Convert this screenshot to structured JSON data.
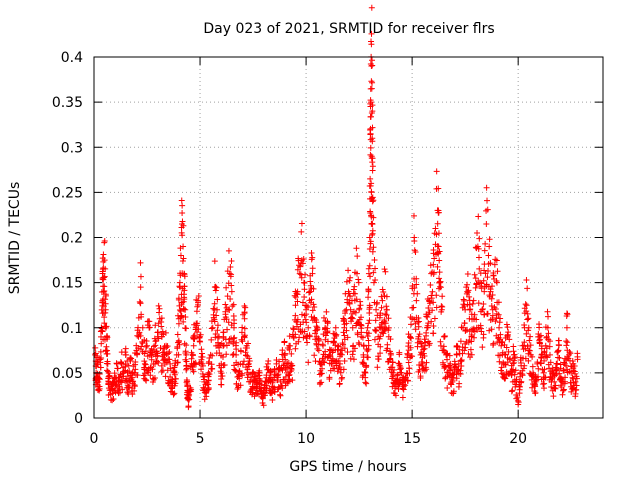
{
  "chart_data": {
    "type": "scatter",
    "title": "Day 023 of 2021, SRMTID for receiver flrs",
    "xlabel": "GPS time / hours",
    "ylabel": "SRMTID / TECUs",
    "xlim": [
      0,
      24
    ],
    "ylim": [
      0,
      0.4
    ],
    "xticks": [
      0,
      5,
      10,
      15,
      20
    ],
    "xtick_labels": [
      "0",
      "5",
      "10",
      "15",
      "20"
    ],
    "yticks": [
      0,
      0.05,
      0.1,
      0.15,
      0.2,
      0.25,
      0.3,
      0.35,
      0.4
    ],
    "ytick_labels": [
      "0",
      "0.05",
      "0.1",
      "0.15",
      "0.2",
      "0.25",
      "0.3",
      "0.35",
      "0.4"
    ],
    "grid": true,
    "marker": "+",
    "color": "#ff0000",
    "x_range_of_data": [
      0,
      22.8
    ],
    "series": [
      {
        "name": "SRMTID",
        "points": [
          [
            0.05,
            0.07
          ],
          [
            0.1,
            0.05
          ],
          [
            0.15,
            0.06
          ],
          [
            0.2,
            0.045
          ],
          [
            0.3,
            0.065
          ],
          [
            0.35,
            0.1
          ],
          [
            0.4,
            0.13
          ],
          [
            0.42,
            0.165
          ],
          [
            0.45,
            0.14
          ],
          [
            0.5,
            0.175
          ],
          [
            0.55,
            0.12
          ],
          [
            0.6,
            0.09
          ],
          [
            0.65,
            0.06
          ],
          [
            0.7,
            0.04
          ],
          [
            0.8,
            0.035
          ],
          [
            0.9,
            0.03
          ],
          [
            1.0,
            0.045
          ],
          [
            1.1,
            0.055
          ],
          [
            1.2,
            0.035
          ],
          [
            1.3,
            0.06
          ],
          [
            1.4,
            0.05
          ],
          [
            1.5,
            0.07
          ],
          [
            1.6,
            0.04
          ],
          [
            1.7,
            0.065
          ],
          [
            1.8,
            0.045
          ],
          [
            1.9,
            0.05
          ],
          [
            2.0,
            0.075
          ],
          [
            2.1,
            0.09
          ],
          [
            2.2,
            0.145
          ],
          [
            2.3,
            0.1
          ],
          [
            2.4,
            0.06
          ],
          [
            2.5,
            0.08
          ],
          [
            2.6,
            0.1
          ],
          [
            2.7,
            0.07
          ],
          [
            2.8,
            0.06
          ],
          [
            2.9,
            0.085
          ],
          [
            3.0,
            0.09
          ],
          [
            3.1,
            0.11
          ],
          [
            3.2,
            0.09
          ],
          [
            3.3,
            0.07
          ],
          [
            3.4,
            0.08
          ],
          [
            3.5,
            0.065
          ],
          [
            3.6,
            0.055
          ],
          [
            3.7,
            0.04
          ],
          [
            3.8,
            0.05
          ],
          [
            3.9,
            0.07
          ],
          [
            4.0,
            0.11
          ],
          [
            4.05,
            0.15
          ],
          [
            4.1,
            0.18
          ],
          [
            4.15,
            0.215
          ],
          [
            4.2,
            0.19
          ],
          [
            4.25,
            0.16
          ],
          [
            4.3,
            0.12
          ],
          [
            4.35,
            0.07
          ],
          [
            4.4,
            0.035
          ],
          [
            4.45,
            0.02
          ],
          [
            4.5,
            0.03
          ],
          [
            4.6,
            0.06
          ],
          [
            4.7,
            0.08
          ],
          [
            4.8,
            0.1
          ],
          [
            4.9,
            0.13
          ],
          [
            5.0,
            0.09
          ],
          [
            5.1,
            0.06
          ],
          [
            5.2,
            0.04
          ],
          [
            5.3,
            0.03
          ],
          [
            5.4,
            0.05
          ],
          [
            5.5,
            0.07
          ],
          [
            5.6,
            0.1
          ],
          [
            5.7,
            0.145
          ],
          [
            5.8,
            0.12
          ],
          [
            5.9,
            0.08
          ],
          [
            6.0,
            0.06
          ],
          [
            6.1,
            0.09
          ],
          [
            6.2,
            0.115
          ],
          [
            6.3,
            0.135
          ],
          [
            6.4,
            0.16
          ],
          [
            6.5,
            0.14
          ],
          [
            6.6,
            0.1
          ],
          [
            6.7,
            0.07
          ],
          [
            6.8,
            0.05
          ],
          [
            6.9,
            0.06
          ],
          [
            7.0,
            0.085
          ],
          [
            7.1,
            0.11
          ],
          [
            7.2,
            0.08
          ],
          [
            7.3,
            0.06
          ],
          [
            7.4,
            0.045
          ],
          [
            7.5,
            0.05
          ],
          [
            7.6,
            0.04
          ],
          [
            7.7,
            0.035
          ],
          [
            7.8,
            0.05
          ],
          [
            7.9,
            0.03
          ],
          [
            8.0,
            0.025
          ],
          [
            8.1,
            0.04
          ],
          [
            8.2,
            0.06
          ],
          [
            8.3,
            0.05
          ],
          [
            8.4,
            0.035
          ],
          [
            8.5,
            0.045
          ],
          [
            8.6,
            0.06
          ],
          [
            8.7,
            0.055
          ],
          [
            8.8,
            0.04
          ],
          [
            8.9,
            0.065
          ],
          [
            9.0,
            0.07
          ],
          [
            9.1,
            0.05
          ],
          [
            9.2,
            0.08
          ],
          [
            9.3,
            0.06
          ],
          [
            9.4,
            0.09
          ],
          [
            9.5,
            0.125
          ],
          [
            9.6,
            0.14
          ],
          [
            9.7,
            0.16
          ],
          [
            9.8,
            0.175
          ],
          [
            9.9,
            0.15
          ],
          [
            10.0,
            0.12
          ],
          [
            10.1,
            0.1
          ],
          [
            10.2,
            0.14
          ],
          [
            10.3,
            0.16
          ],
          [
            10.4,
            0.11
          ],
          [
            10.5,
            0.09
          ],
          [
            10.6,
            0.075
          ],
          [
            10.7,
            0.06
          ],
          [
            10.8,
            0.08
          ],
          [
            10.9,
            0.1
          ],
          [
            11.0,
            0.095
          ],
          [
            11.1,
            0.07
          ],
          [
            11.2,
            0.06
          ],
          [
            11.3,
            0.085
          ],
          [
            11.4,
            0.1
          ],
          [
            11.5,
            0.08
          ],
          [
            11.6,
            0.06
          ],
          [
            11.7,
            0.075
          ],
          [
            11.8,
            0.1
          ],
          [
            11.9,
            0.12
          ],
          [
            12.0,
            0.14
          ],
          [
            12.1,
            0.12
          ],
          [
            12.2,
            0.1
          ],
          [
            12.3,
            0.13
          ],
          [
            12.4,
            0.16
          ],
          [
            12.5,
            0.12
          ],
          [
            12.6,
            0.09
          ],
          [
            12.7,
            0.07
          ],
          [
            12.8,
            0.05
          ],
          [
            12.9,
            0.1
          ],
          [
            12.95,
            0.14
          ],
          [
            13.0,
            0.2
          ],
          [
            13.02,
            0.265
          ],
          [
            13.04,
            0.315
          ],
          [
            13.06,
            0.35
          ],
          [
            13.08,
            0.39
          ],
          [
            13.1,
            0.365
          ],
          [
            13.12,
            0.31
          ],
          [
            13.14,
            0.24
          ],
          [
            13.2,
            0.15
          ],
          [
            13.3,
            0.12
          ],
          [
            13.4,
            0.09
          ],
          [
            13.5,
            0.1
          ],
          [
            13.6,
            0.13
          ],
          [
            13.7,
            0.165
          ],
          [
            13.8,
            0.12
          ],
          [
            13.9,
            0.09
          ],
          [
            14.0,
            0.07
          ],
          [
            14.1,
            0.05
          ],
          [
            14.2,
            0.035
          ],
          [
            14.3,
            0.04
          ],
          [
            14.4,
            0.06
          ],
          [
            14.5,
            0.05
          ],
          [
            14.6,
            0.035
          ],
          [
            14.7,
            0.045
          ],
          [
            14.8,
            0.07
          ],
          [
            14.9,
            0.09
          ],
          [
            15.0,
            0.11
          ],
          [
            15.1,
            0.2
          ],
          [
            15.2,
            0.13
          ],
          [
            15.3,
            0.09
          ],
          [
            15.4,
            0.07
          ],
          [
            15.5,
            0.06
          ],
          [
            15.6,
            0.08
          ],
          [
            15.7,
            0.1
          ],
          [
            15.8,
            0.13
          ],
          [
            15.9,
            0.16
          ],
          [
            16.0,
            0.17
          ],
          [
            16.1,
            0.21
          ],
          [
            16.2,
            0.23
          ],
          [
            16.25,
            0.19
          ],
          [
            16.3,
            0.15
          ],
          [
            16.4,
            0.12
          ],
          [
            16.5,
            0.09
          ],
          [
            16.6,
            0.07
          ],
          [
            16.7,
            0.05
          ],
          [
            16.8,
            0.06
          ],
          [
            16.9,
            0.04
          ],
          [
            17.0,
            0.05
          ],
          [
            17.1,
            0.07
          ],
          [
            17.2,
            0.06
          ],
          [
            17.3,
            0.085
          ],
          [
            17.4,
            0.1
          ],
          [
            17.5,
            0.12
          ],
          [
            17.6,
            0.14
          ],
          [
            17.7,
            0.11
          ],
          [
            17.8,
            0.09
          ],
          [
            17.9,
            0.13
          ],
          [
            18.0,
            0.155
          ],
          [
            18.1,
            0.19
          ],
          [
            18.2,
            0.15
          ],
          [
            18.3,
            0.12
          ],
          [
            18.4,
            0.14
          ],
          [
            18.5,
            0.215
          ],
          [
            18.6,
            0.18
          ],
          [
            18.7,
            0.14
          ],
          [
            18.8,
            0.12
          ],
          [
            18.9,
            0.17
          ],
          [
            19.0,
            0.15
          ],
          [
            19.1,
            0.1
          ],
          [
            19.2,
            0.08
          ],
          [
            19.3,
            0.06
          ],
          [
            19.4,
            0.07
          ],
          [
            19.5,
            0.09
          ],
          [
            19.6,
            0.065
          ],
          [
            19.7,
            0.05
          ],
          [
            19.8,
            0.07
          ],
          [
            19.9,
            0.04
          ],
          [
            20.0,
            0.015
          ],
          [
            20.1,
            0.05
          ],
          [
            20.2,
            0.08
          ],
          [
            20.3,
            0.1
          ],
          [
            20.4,
            0.125
          ],
          [
            20.5,
            0.1
          ],
          [
            20.6,
            0.07
          ],
          [
            20.7,
            0.05
          ],
          [
            20.8,
            0.035
          ],
          [
            20.9,
            0.06
          ],
          [
            21.0,
            0.09
          ],
          [
            21.1,
            0.07
          ],
          [
            21.2,
            0.05
          ],
          [
            21.3,
            0.08
          ],
          [
            21.4,
            0.1
          ],
          [
            21.5,
            0.07
          ],
          [
            21.6,
            0.05
          ],
          [
            21.7,
            0.04
          ],
          [
            21.8,
            0.06
          ],
          [
            21.9,
            0.075
          ],
          [
            22.0,
            0.055
          ],
          [
            22.1,
            0.04
          ],
          [
            22.2,
            0.06
          ],
          [
            22.3,
            0.1
          ],
          [
            22.4,
            0.07
          ],
          [
            22.5,
            0.05
          ],
          [
            22.6,
            0.06
          ],
          [
            22.7,
            0.04
          ],
          [
            22.8,
            0.065
          ]
        ]
      }
    ]
  }
}
